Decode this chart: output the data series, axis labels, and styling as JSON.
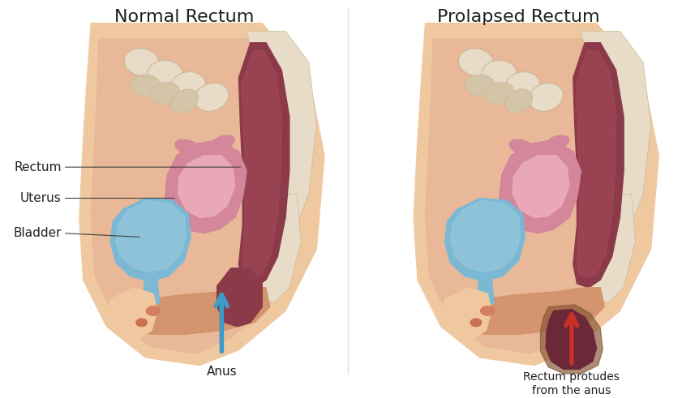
{
  "title_left": "Normal Rectum",
  "title_right": "Prolapsed Rectum",
  "label_rectum": "Rectum",
  "label_uterus": "Uterus",
  "label_bladder": "Bladder",
  "label_anus": "Anus",
  "label_prolapse": "Rectum protudes\nfrom the anus",
  "bg_color": "#ffffff",
  "skin_outer": "#f0c8a0",
  "skin_inner": "#e8b898",
  "skin_dark": "#d4956e",
  "bone_color": "#e8dcc8",
  "bone_outline": "#c8b898",
  "rectum_color": "#8b3a4a",
  "rectum_light": "#b05060",
  "uterus_pink": "#d4869a",
  "uterus_light": "#e8a8b8",
  "bladder_blue": "#7ab8d4",
  "bladder_light": "#a0ccdc",
  "tissue_brown": "#8b5a3a",
  "tissue_light": "#b07848",
  "prolapse_color": "#6b2838",
  "arrow_blue": "#3a9cc8",
  "arrow_red": "#c83028",
  "line_color": "#404040",
  "title_fontsize": 16,
  "label_fontsize": 11,
  "annotation_fontsize": 10
}
